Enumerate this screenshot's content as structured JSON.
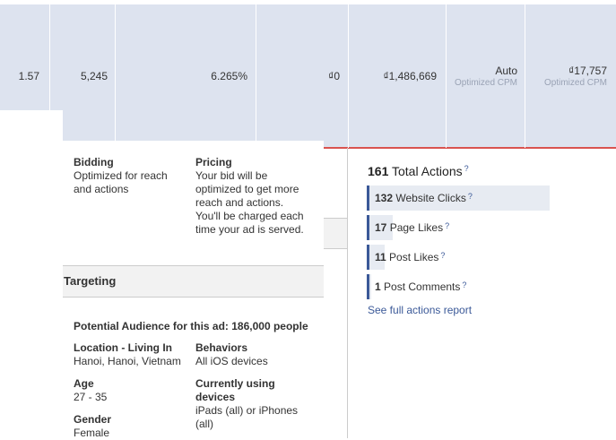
{
  "stats_row": {
    "cells": [
      "1.57",
      "5,245",
      "6.265%",
      "₫0",
      "₫1,486,669"
    ],
    "bid": {
      "value": "Auto",
      "note": "Optimized CPM"
    },
    "price": {
      "value": "₫17,757",
      "note": "Optimized CPM"
    }
  },
  "bidding": {
    "label": "Bidding",
    "text": "Optimized for reach and actions"
  },
  "pricing": {
    "label": "Pricing",
    "text": "Your bid will be optimized to get more reach and actions. You'll be charged each time your ad is served."
  },
  "targeting": {
    "title": "Targeting",
    "audience": "Potential Audience for this ad: 186,000 people",
    "location": {
      "label": "Location - Living In",
      "text": "Hanoi, Hanoi, Vietnam"
    },
    "behaviors": {
      "label": "Behaviors",
      "text": "All iOS devices"
    },
    "age": {
      "label": "Age",
      "text": "27 - 35"
    },
    "devices": {
      "label": "Currently using devices",
      "text": "iPads (all) or iPhones (all)"
    },
    "gender": {
      "label": "Gender",
      "text": "Female"
    }
  },
  "actions": {
    "total": 161,
    "total_label": "Total Actions",
    "help": "?",
    "items": [
      {
        "count": 132,
        "label": "Website Clicks"
      },
      {
        "count": 17,
        "label": "Page Likes"
      },
      {
        "count": 11,
        "label": "Post Likes"
      },
      {
        "count": 1,
        "label": "Post Comments"
      }
    ],
    "link": "See full actions report"
  }
}
